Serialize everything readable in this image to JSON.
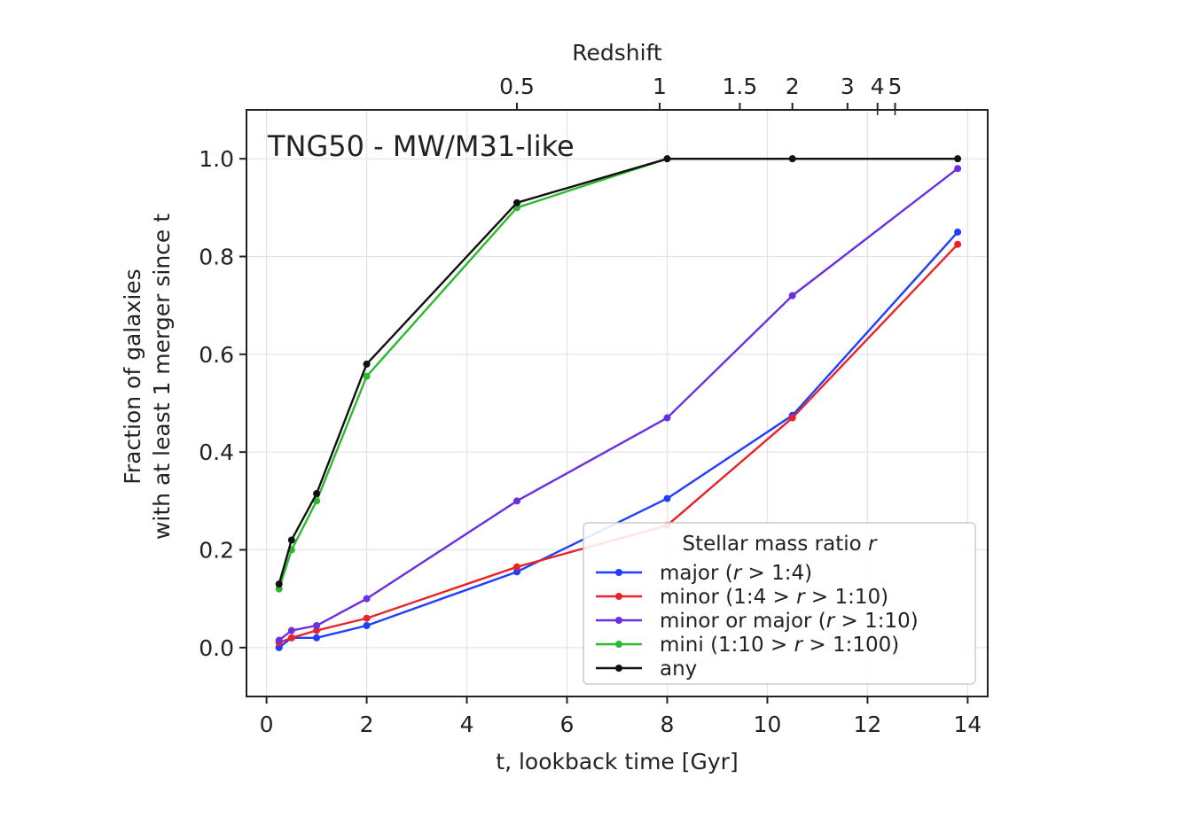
{
  "chart_data": {
    "type": "line",
    "annotation": "TNG50 - MW/M31-like",
    "xlabel": "t, lookback time [Gyr]",
    "ylabel_line1": "Fraction of galaxies",
    "ylabel_line2": "with at least 1 merger since t",
    "top_axis_label": "Redshift",
    "xlim": [
      -0.4,
      14.4
    ],
    "ylim": [
      -0.1,
      1.1
    ],
    "grid": true,
    "legend_placement": "lower-right",
    "x_ticks": [
      0,
      2,
      4,
      6,
      8,
      10,
      12,
      14
    ],
    "x_tick_labels": [
      "0",
      "2",
      "4",
      "6",
      "8",
      "10",
      "12",
      "14"
    ],
    "y_ticks": [
      0.0,
      0.2,
      0.4,
      0.6,
      0.8,
      1.0
    ],
    "y_tick_labels": [
      "0.0",
      "0.2",
      "0.4",
      "0.6",
      "0.8",
      "1.0"
    ],
    "top_ticks": [
      {
        "lookback": 5.0,
        "label": "0.5"
      },
      {
        "lookback": 7.85,
        "label": "1"
      },
      {
        "lookback": 9.45,
        "label": "1.5"
      },
      {
        "lookback": 10.5,
        "label": "2"
      },
      {
        "lookback": 11.6,
        "label": "3"
      },
      {
        "lookback": 12.2,
        "label": "4"
      },
      {
        "lookback": 12.55,
        "label": "5"
      }
    ],
    "top_minor_ticks": [
      12.2,
      12.55
    ],
    "legend_title": "Stellar mass ratio r",
    "x": [
      0.25,
      0.5,
      1,
      2,
      5,
      8,
      10.5,
      13.8
    ],
    "series": [
      {
        "name": "major (r > 1:4)",
        "color": "#1f3fff",
        "values": [
          0.0,
          0.02,
          0.02,
          0.045,
          0.155,
          0.305,
          0.475,
          0.85
        ]
      },
      {
        "name": "minor (1:4 > r > 1:10)",
        "color": "#e8232a",
        "values": [
          0.01,
          0.02,
          0.035,
          0.06,
          0.165,
          0.25,
          0.47,
          0.825
        ]
      },
      {
        "name": "minor or major (r > 1:10)",
        "color": "#6a2fe0",
        "values": [
          0.015,
          0.035,
          0.045,
          0.1,
          0.3,
          0.47,
          0.72,
          0.98
        ]
      },
      {
        "name": "mini (1:10 > r > 1:100)",
        "color": "#2eb82e",
        "values": [
          0.12,
          0.2,
          0.3,
          0.555,
          0.9,
          1.0,
          1.0,
          1.0
        ]
      },
      {
        "name": "any",
        "color": "#111111",
        "values": [
          0.13,
          0.22,
          0.315,
          0.58,
          0.91,
          1.0,
          1.0,
          1.0
        ]
      }
    ],
    "legend_entries": [
      {
        "parts": [
          "major (",
          "r",
          " > 1:4)"
        ]
      },
      {
        "parts": [
          "minor (1:4 > ",
          "r",
          " > 1:10)"
        ]
      },
      {
        "parts": [
          "minor or major (",
          "r",
          " > 1:10)"
        ]
      },
      {
        "parts": [
          "mini (1:10 > ",
          "r",
          " > 1:100)"
        ]
      },
      {
        "parts": [
          "any",
          "",
          ""
        ]
      }
    ],
    "legend_title_parts": [
      "Stellar mass ratio ",
      "r"
    ]
  }
}
